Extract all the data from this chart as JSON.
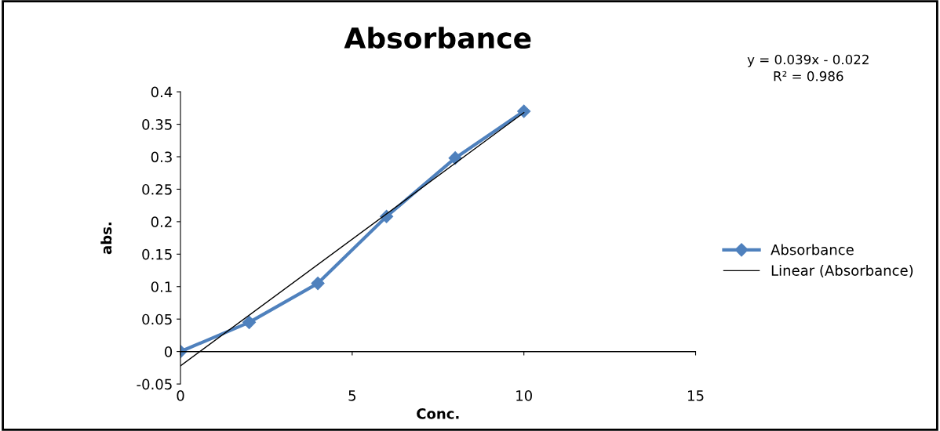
{
  "chart_data": {
    "type": "line",
    "title": "Absorbance",
    "xlabel": "Conc.",
    "ylabel": "abs.",
    "x": [
      0,
      2,
      4,
      6,
      8,
      10
    ],
    "series": [
      {
        "name": "Absorbance",
        "color": "#4f81bd",
        "values": [
          0,
          0.045,
          0.105,
          0.208,
          0.298,
          0.37
        ],
        "marker": "diamond"
      },
      {
        "name": "Linear (Absorbance)",
        "type": "line",
        "color": "#000000",
        "x": [
          0,
          10
        ],
        "values": [
          -0.022,
          0.368
        ],
        "marker": "none"
      }
    ],
    "xlim": [
      0,
      15
    ],
    "xticks": [
      0,
      5,
      10,
      15
    ],
    "ylim": [
      -0.05,
      0.4
    ],
    "yticks": [
      -0.05,
      0,
      0.05,
      0.1,
      0.15,
      0.2,
      0.25,
      0.3,
      0.35,
      0.4
    ],
    "annotations": [
      "y = 0.039x - 0.022\nR² = 0.986"
    ],
    "ref_lines": [
      {
        "axis": "y",
        "value": 0,
        "color": "#000000"
      }
    ],
    "grid": false,
    "legend": "right"
  }
}
